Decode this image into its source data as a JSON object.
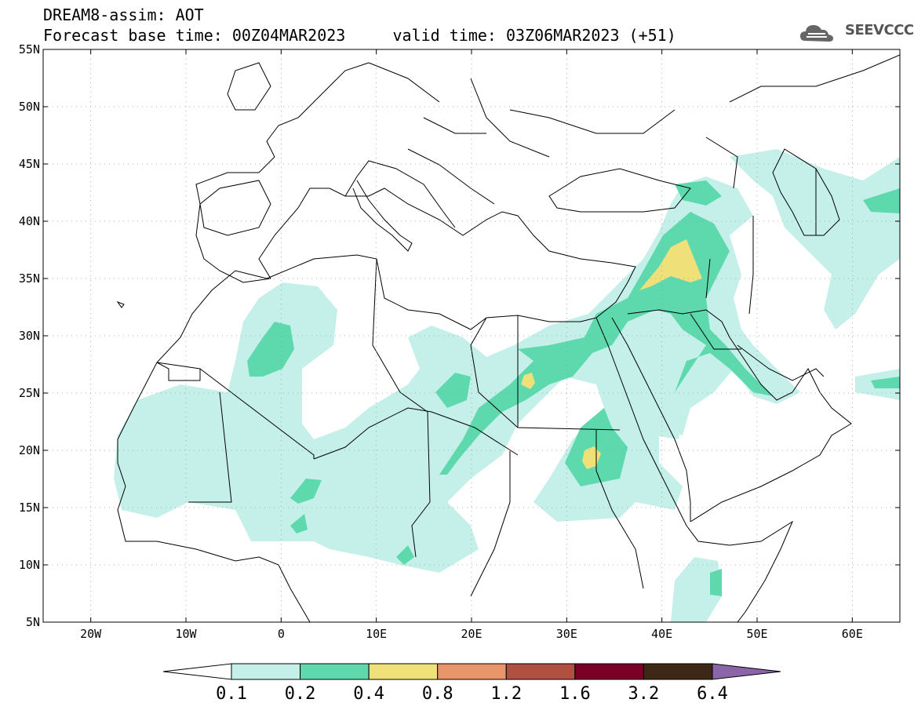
{
  "header": {
    "title_line1": "DREAM8-assim: AOT",
    "title_line2": "Forecast base time: 00Z04MAR2023     valid time: 03Z06MAR2023 (+51)",
    "logo_text": "SEEVCCC"
  },
  "map": {
    "lon_range": [
      -25,
      65
    ],
    "lat_range": [
      5,
      55
    ],
    "lat_labels": [
      "55N",
      "50N",
      "45N",
      "40N",
      "35N",
      "30N",
      "25N",
      "20N",
      "15N",
      "10N",
      "5N"
    ],
    "lat_values": [
      55,
      50,
      45,
      40,
      35,
      30,
      25,
      20,
      15,
      10,
      5
    ],
    "lon_labels": [
      "20W",
      "10W",
      "0",
      "10E",
      "20E",
      "30E",
      "40E",
      "50E",
      "60E"
    ],
    "lon_values": [
      -20,
      -10,
      0,
      10,
      20,
      30,
      40,
      50,
      60
    ]
  },
  "colorbar": {
    "colors": [
      "#ffffff",
      "#c5f0ea",
      "#5ed9ae",
      "#f0e07a",
      "#e8956a",
      "#b05040",
      "#7a0028",
      "#3d2817",
      "#8c64a8"
    ],
    "labels": [
      "0.1",
      "0.2",
      "0.4",
      "0.8",
      "1.2",
      "1.6",
      "3.2",
      "6.4"
    ]
  }
}
